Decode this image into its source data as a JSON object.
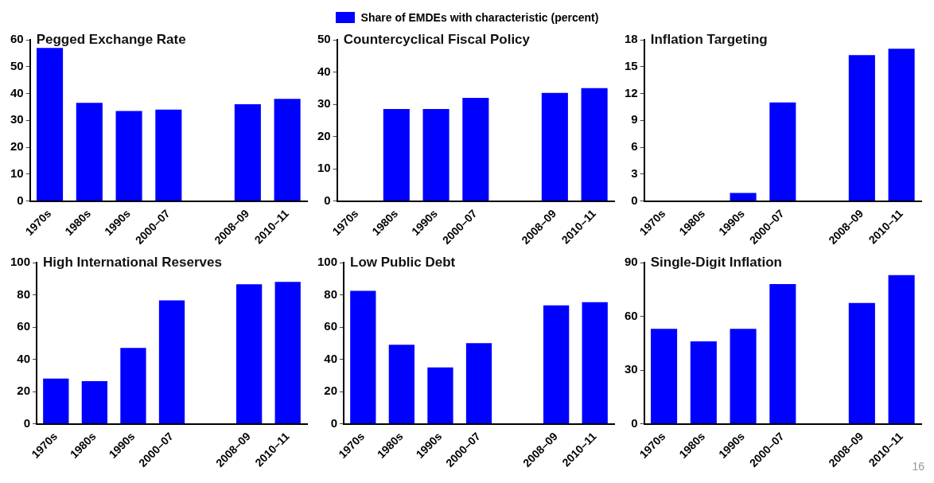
{
  "chart_data": [
    {
      "type": "bar",
      "title": "Pegged Exchange Rate",
      "categories": [
        "1970s",
        "1980s",
        "1990s",
        "2000–07",
        null,
        "2008–09",
        "2010–11"
      ],
      "series": [
        {
          "name": "Share of EMDEs with characteristic (percent)",
          "color": "#0000ff",
          "values": [
            57,
            36.5,
            33.5,
            34,
            null,
            36,
            38
          ]
        }
      ],
      "ylim": [
        0,
        60
      ],
      "yticks": [
        0,
        10,
        20,
        30,
        40,
        50,
        60
      ],
      "legend": "top"
    },
    {
      "type": "bar",
      "title": "Countercyclical Fiscal Policy",
      "categories": [
        "1970s",
        "1980s",
        "1990s",
        "2000–07",
        null,
        "2008–09",
        "2010–11"
      ],
      "series": [
        {
          "color": "#0000ff",
          "values": [
            0,
            28.5,
            28.5,
            32,
            null,
            33.5,
            35
          ]
        }
      ],
      "ylim": [
        0,
        50
      ],
      "yticks": [
        0,
        10,
        20,
        30,
        40,
        50
      ]
    },
    {
      "type": "bar",
      "title": "Inflation Targeting",
      "categories": [
        "1970s",
        "1980s",
        "1990s",
        "2000–07",
        null,
        "2008–09",
        "2010–11"
      ],
      "series": [
        {
          "color": "#0000ff",
          "values": [
            0,
            0,
            0.9,
            11,
            null,
            16.3,
            17
          ]
        }
      ],
      "ylim": [
        0,
        18
      ],
      "yticks": [
        0,
        3,
        6,
        9,
        12,
        15,
        18
      ]
    },
    {
      "type": "bar",
      "title": "High International Reserves",
      "categories": [
        "1970s",
        "1980s",
        "1990s",
        "2000–07",
        null,
        "2008–09",
        "2010–11"
      ],
      "series": [
        {
          "color": "#0000ff",
          "values": [
            28,
            26.5,
            47,
            76.5,
            null,
            86.5,
            88
          ]
        }
      ],
      "ylim": [
        0,
        100
      ],
      "yticks": [
        0,
        20,
        40,
        60,
        80,
        100
      ]
    },
    {
      "type": "bar",
      "title": "Low Public Debt",
      "categories": [
        "1970s",
        "1980s",
        "1990s",
        "2000–07",
        null,
        "2008–09",
        "2010–11"
      ],
      "series": [
        {
          "color": "#0000ff",
          "values": [
            82.5,
            49,
            35,
            50,
            null,
            73.5,
            75.5
          ]
        }
      ],
      "ylim": [
        0,
        100
      ],
      "yticks": [
        0,
        20,
        40,
        60,
        80,
        100
      ]
    },
    {
      "type": "bar",
      "title": "Single-Digit Inflation",
      "categories": [
        "1970s",
        "1980s",
        "1990s",
        "2000–07",
        null,
        "2008–09",
        "2010–11"
      ],
      "series": [
        {
          "color": "#0000ff",
          "values": [
            53,
            46,
            53,
            78,
            null,
            67.5,
            83
          ]
        }
      ],
      "ylim": [
        0,
        90
      ],
      "yticks": [
        0,
        30,
        60,
        90
      ],
      "annotations": [
        "16"
      ]
    }
  ]
}
